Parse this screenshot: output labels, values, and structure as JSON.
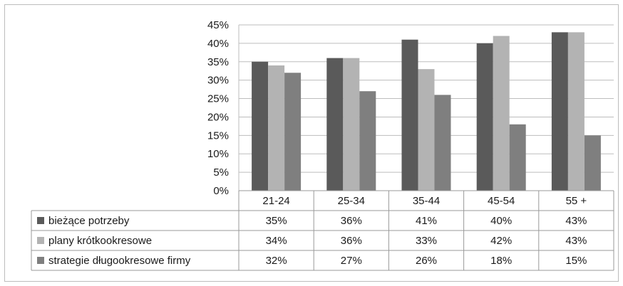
{
  "chart_data": {
    "type": "bar",
    "categories": [
      "21-24",
      "25-34",
      "35-44",
      "45-54",
      "55 +"
    ],
    "series": [
      {
        "name": "bieżące potrzeby",
        "values": [
          35,
          36,
          41,
          40,
          43
        ],
        "labels": [
          "35%",
          "36%",
          "41%",
          "40%",
          "43%"
        ],
        "color": "#5a5a5a"
      },
      {
        "name": "plany krótkookresowe",
        "values": [
          34,
          36,
          33,
          42,
          43
        ],
        "labels": [
          "34%",
          "36%",
          "33%",
          "42%",
          "43%"
        ],
        "color": "#b3b3b3"
      },
      {
        "name": "strategie długookresowe firmy",
        "values": [
          32,
          27,
          26,
          18,
          15
        ],
        "labels": [
          "32%",
          "27%",
          "26%",
          "18%",
          "15%"
        ],
        "color": "#7f7f7f"
      }
    ],
    "yticks": [
      "0%",
      "5%",
      "10%",
      "15%",
      "20%",
      "25%",
      "30%",
      "35%",
      "40%",
      "45%"
    ],
    "ylim": [
      0,
      45
    ],
    "ystep": 5,
    "grid": true,
    "legend": "data-table",
    "title": "",
    "xlabel": "",
    "ylabel": ""
  }
}
